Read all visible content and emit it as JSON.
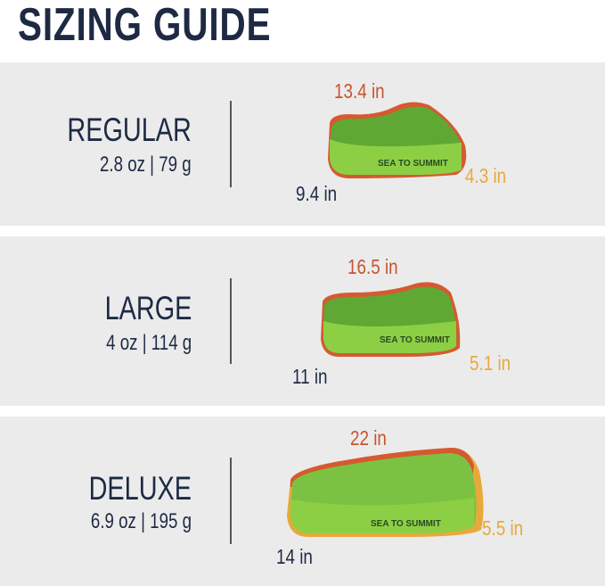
{
  "title": "SIZING GUIDE",
  "brand": "SEA TO SUMMIT",
  "colors": {
    "navy": "#1e2a44",
    "length": "#c8532e",
    "height": "#e8a93a",
    "pillow": "#7cc242",
    "panel": "#ebebeb"
  },
  "sizes": [
    {
      "name": "REGULAR",
      "weight": "2.8 oz | 79 g",
      "length": "13.4 in",
      "height": "4.3 in",
      "width": "9.4 in"
    },
    {
      "name": "LARGE",
      "weight": "4 oz | 114 g",
      "length": "16.5 in",
      "height": "5.1 in",
      "width": "11 in"
    },
    {
      "name": "DELUXE",
      "weight": "6.9 oz | 195 g",
      "length": "22 in",
      "height": "5.5 in",
      "width": "14 in"
    }
  ]
}
